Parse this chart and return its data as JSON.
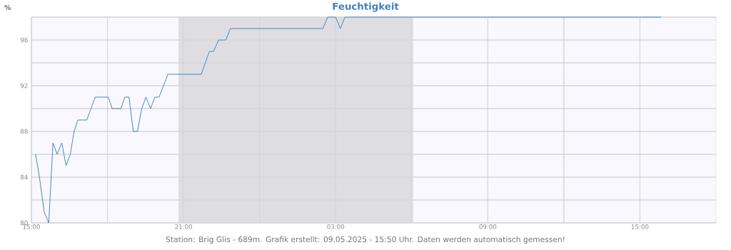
{
  "chart_data": {
    "type": "line",
    "title": "Feuchtigkeit",
    "ylabel": "%",
    "annotations": [
      "Station: Brig Glis - 689m. Grafik erstellt: 09.05.2025 - 15:50 Uhr. Daten werden automatisch gemessen!"
    ],
    "x": [
      "2025-05-08T15:10",
      "2025-05-08T15:19",
      "2025-05-08T15:30",
      "2025-05-08T15:41",
      "2025-05-08T15:51",
      "2025-05-08T16:01",
      "2025-05-08T16:12",
      "2025-05-08T16:22",
      "2025-05-08T16:32",
      "2025-05-08T16:41",
      "2025-05-08T16:50",
      "2025-05-08T17:11",
      "2025-05-08T17:31",
      "2025-05-08T18:02",
      "2025-05-08T18:11",
      "2025-05-08T18:32",
      "2025-05-08T18:41",
      "2025-05-08T18:51",
      "2025-05-08T19:01",
      "2025-05-08T19:11",
      "2025-05-08T19:21",
      "2025-05-08T19:31",
      "2025-05-08T19:42",
      "2025-05-08T19:52",
      "2025-05-08T20:02",
      "2025-05-08T20:23",
      "2025-05-08T21:42",
      "2025-05-08T22:01",
      "2025-05-08T22:11",
      "2025-05-08T22:23",
      "2025-05-08T22:40",
      "2025-05-08T22:51",
      "2025-05-09T02:30",
      "2025-05-09T02:41",
      "2025-05-09T03:00",
      "2025-05-09T03:11",
      "2025-05-09T03:22",
      "2025-05-09T15:50"
    ],
    "series": [
      {
        "color": "#3a7fc1",
        "values": [
          86,
          84,
          81,
          80,
          87,
          86,
          87,
          85,
          86,
          88,
          89,
          89,
          91,
          91,
          90,
          90,
          91,
          91,
          88,
          88,
          90,
          91,
          90,
          91,
          91,
          93,
          93,
          95,
          95,
          96,
          96,
          97,
          97,
          98,
          98,
          97,
          98,
          98
        ]
      }
    ],
    "xlim": [
      "2025-05-08T15:00",
      "2025-05-09T18:00"
    ],
    "ylim": [
      80,
      98
    ],
    "xticks": [
      {
        "value": "2025-05-08T15:00",
        "label": "15:00"
      },
      {
        "value": "2025-05-08T18:00",
        "label": null
      },
      {
        "value": "2025-05-08T21:00",
        "label": "21:00"
      },
      {
        "value": "2025-05-09T00:00",
        "label": null
      },
      {
        "value": "2025-05-09T03:00",
        "label": "03:00"
      },
      {
        "value": "2025-05-09T06:00",
        "label": null
      },
      {
        "value": "2025-05-09T09:00",
        "label": "09:00"
      },
      {
        "value": "2025-05-09T12:00",
        "label": null
      },
      {
        "value": "2025-05-09T15:00",
        "label": "15:00"
      }
    ],
    "yticks": [
      80,
      {
        "value": 82,
        "label": null
      },
      84,
      {
        "value": 86,
        "label": null
      },
      88,
      {
        "value": 90,
        "label": null
      },
      92,
      {
        "value": 94,
        "label": null
      },
      96,
      {
        "value": 98,
        "label": null
      }
    ],
    "bands": [
      {
        "axis": "x",
        "from": "2025-05-08T20:48",
        "to": "2025-05-09T06:03",
        "color": "#dedee2"
      }
    ],
    "grid": true
  }
}
